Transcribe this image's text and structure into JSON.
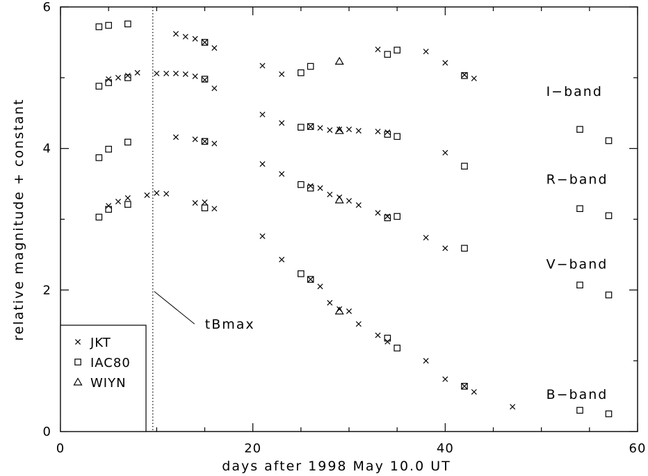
{
  "chart_data": {
    "type": "scatter",
    "xlabel": "days after 1998 May 10.0 UT",
    "ylabel": "relative magnitude + constant",
    "xlim": [
      0,
      60
    ],
    "ylim": [
      0,
      6
    ],
    "xticks": [
      0,
      20,
      40,
      60
    ],
    "yticks": [
      0,
      2,
      4,
      6
    ],
    "xticks_minor": [
      5,
      10,
      15,
      25,
      30,
      35,
      45,
      50,
      55
    ],
    "yticks_minor": [
      1,
      3,
      5
    ],
    "grid": false,
    "legend_position": "bottom-left",
    "reference_line": {
      "x": 9.6,
      "label": "tBmax",
      "style": "dotted"
    },
    "band_labels": [
      {
        "text": "I−band",
        "x": 50.5,
        "y": 4.8
      },
      {
        "text": "R−band",
        "x": 50.5,
        "y": 3.56
      },
      {
        "text": "V−band",
        "x": 50.5,
        "y": 2.36
      },
      {
        "text": "B−band",
        "x": 50.5,
        "y": 0.52
      }
    ],
    "series": [
      {
        "name": "JKT",
        "marker": "x",
        "bands": [
          {
            "band": "I",
            "x": [
              5,
              6,
              7,
              8,
              10,
              11,
              12,
              13,
              14,
              15,
              16
            ],
            "y": [
              4.98,
              5.0,
              5.03,
              5.07,
              5.06,
              5.06,
              5.06,
              5.05,
              5.02,
              4.97,
              4.85
            ]
          },
          {
            "band": "I2",
            "x": [
              12,
              13,
              14,
              15,
              16,
              21,
              23,
              33,
              38,
              40,
              42,
              43
            ],
            "y": [
              5.62,
              5.58,
              5.55,
              5.5,
              5.42,
              5.17,
              5.05,
              5.4,
              5.37,
              5.21,
              5.04,
              4.99
            ]
          },
          {
            "band": "R",
            "x": [
              12,
              14,
              15,
              16,
              21,
              23,
              26,
              27,
              28,
              29,
              30,
              31,
              33,
              34,
              40
            ],
            "y": [
              4.16,
              4.13,
              4.1,
              4.07,
              4.48,
              4.36,
              4.31,
              4.29,
              4.26,
              4.27,
              4.27,
              4.25,
              4.24,
              4.23,
              3.94
            ]
          },
          {
            "band": "V",
            "x": [
              5,
              6,
              7,
              9,
              10,
              11,
              14,
              15,
              16,
              21,
              23,
              26,
              27,
              28,
              29,
              30,
              31,
              33,
              34,
              38,
              40
            ],
            "y": [
              3.19,
              3.25,
              3.3,
              3.34,
              3.37,
              3.36,
              3.23,
              3.24,
              3.15,
              3.78,
              3.64,
              3.47,
              3.44,
              3.35,
              3.31,
              3.26,
              3.2,
              3.09,
              3.04,
              2.74,
              2.59
            ]
          },
          {
            "band": "B",
            "x": [
              21,
              23,
              26,
              27,
              28,
              29,
              30,
              31,
              33,
              34,
              38,
              40,
              42,
              43,
              47
            ],
            "y": [
              2.76,
              2.43,
              2.15,
              2.05,
              1.82,
              1.73,
              1.7,
              1.52,
              1.36,
              1.27,
              1.0,
              0.74,
              0.64,
              0.56,
              0.35
            ]
          }
        ]
      },
      {
        "name": "IAC80",
        "marker": "square",
        "bands": [
          {
            "band": "I",
            "x": [
              4,
              5,
              7,
              15,
              25,
              26,
              34,
              35,
              42
            ],
            "y": [
              4.88,
              4.93,
              5.0,
              4.98,
              5.07,
              5.16,
              5.33,
              5.39,
              5.03
            ]
          },
          {
            "band": "Itop",
            "x": [
              4,
              5,
              7,
              15
            ],
            "y": [
              5.72,
              5.74,
              5.76,
              5.5
            ]
          },
          {
            "band": "R",
            "x": [
              4,
              5,
              7,
              15,
              25,
              26,
              34,
              35,
              42,
              54,
              57
            ],
            "y": [
              3.87,
              3.99,
              4.09,
              4.1,
              4.3,
              4.31,
              4.2,
              4.17,
              3.75,
              4.27,
              4.11
            ]
          },
          {
            "band": "V",
            "x": [
              4,
              5,
              7,
              15,
              25,
              26,
              34,
              35,
              42,
              54,
              57
            ],
            "y": [
              3.03,
              3.14,
              3.21,
              3.16,
              3.49,
              3.44,
              3.02,
              3.04,
              2.59,
              3.15,
              3.05
            ]
          },
          {
            "band": "B",
            "x": [
              25,
              26,
              34,
              35,
              42,
              54,
              57
            ],
            "y": [
              2.23,
              2.15,
              1.32,
              1.18,
              0.64,
              0.3,
              0.25
            ]
          },
          {
            "band": "V2",
            "x": [
              54,
              57
            ],
            "y": [
              2.07,
              1.93
            ]
          }
        ]
      },
      {
        "name": "WIYN",
        "marker": "triangle",
        "bands": [
          {
            "band": "I",
            "x": [
              29
            ],
            "y": [
              5.23
            ]
          },
          {
            "band": "R",
            "x": [
              29
            ],
            "y": [
              4.25
            ]
          },
          {
            "band": "V",
            "x": [
              29
            ],
            "y": [
              3.27
            ]
          },
          {
            "band": "B",
            "x": [
              29
            ],
            "y": [
              1.7
            ]
          }
        ]
      }
    ]
  }
}
